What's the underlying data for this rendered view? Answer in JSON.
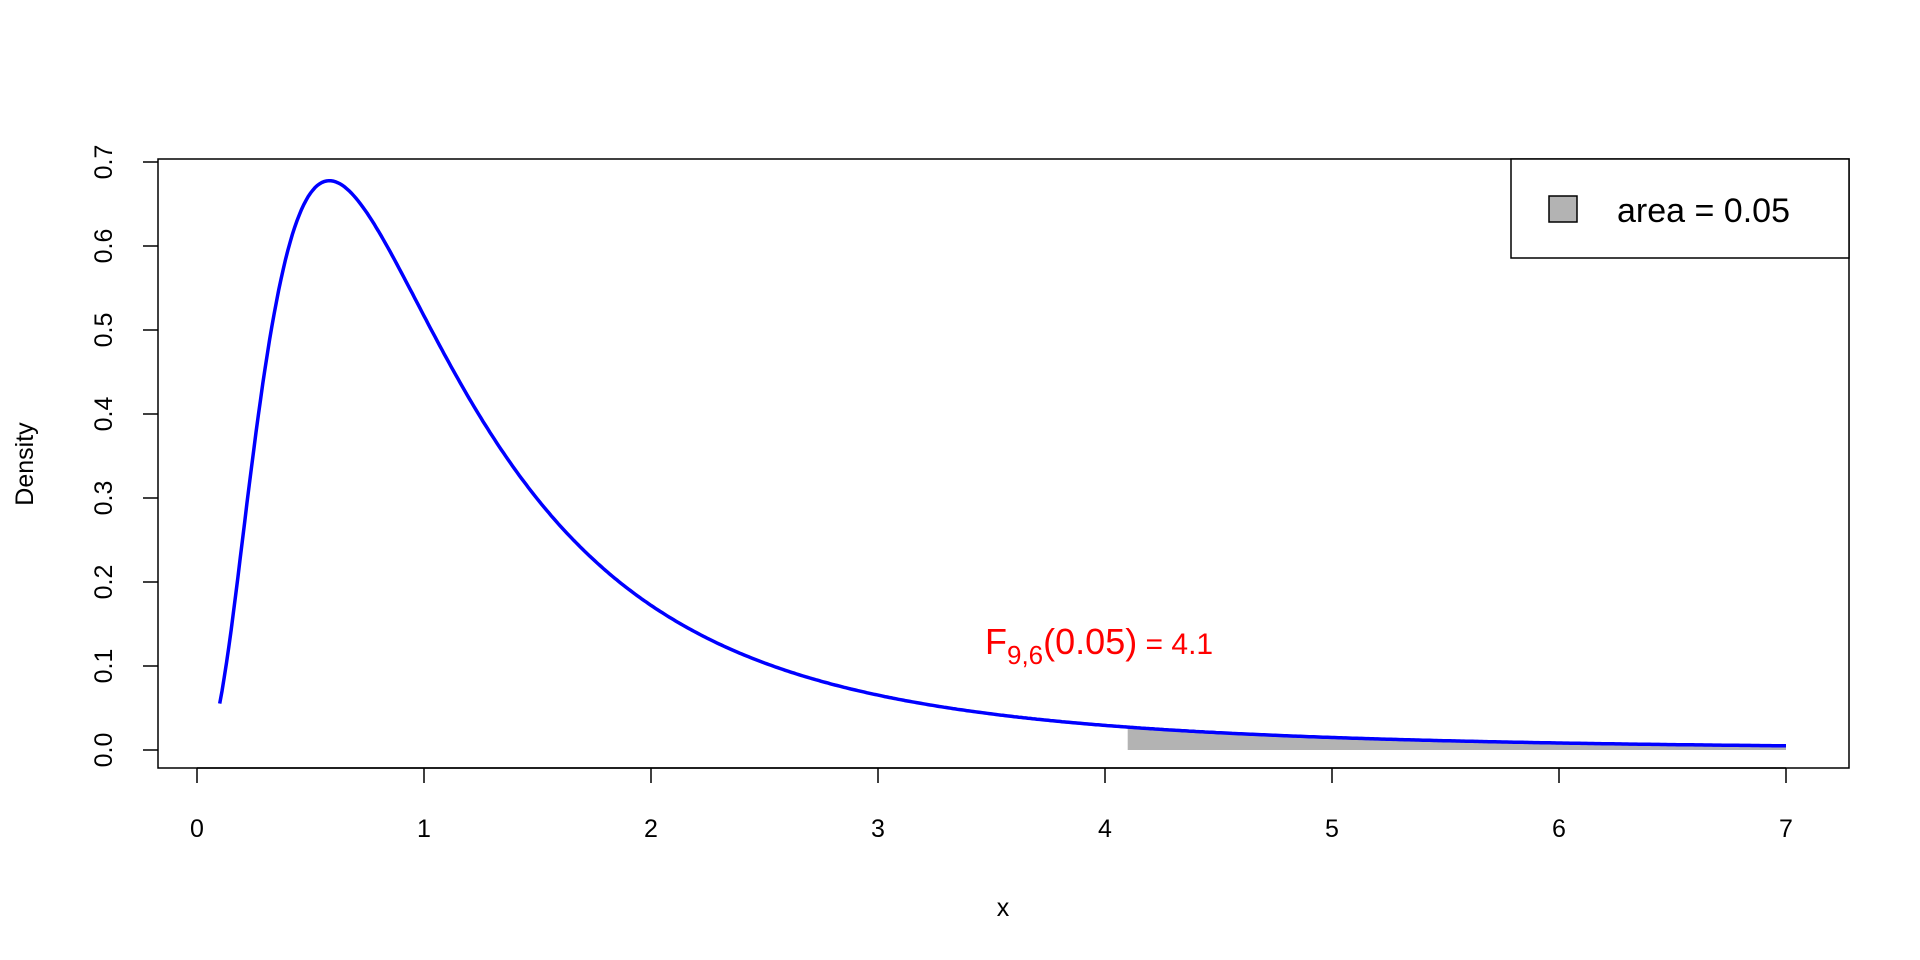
{
  "chart_data": {
    "type": "area",
    "title": "",
    "xlabel": "x",
    "ylabel": "Density",
    "xlim": [
      0,
      7
    ],
    "ylim": [
      0,
      0.7
    ],
    "x_ticks": [
      "0",
      "1",
      "2",
      "3",
      "4",
      "5",
      "6",
      "7"
    ],
    "y_ticks": [
      "0.0",
      "0.1",
      "0.2",
      "0.3",
      "0.4",
      "0.5",
      "0.6",
      "0.7"
    ],
    "grid": false,
    "series": [
      {
        "distribution": "F",
        "df1": 9,
        "df2": 6,
        "x_range": [
          0.1,
          7
        ],
        "color": "#0000FF"
      }
    ],
    "shaded_region": {
      "x_range": [
        4.1,
        7
      ],
      "color": "#B3B3B3"
    },
    "annotation": {
      "prefix": "F",
      "subscript": "9,6",
      "body": "(0.05)",
      "suffix": " = 4.1",
      "x": 4.1,
      "y": 0.12,
      "color": "#FF0000"
    },
    "legend": {
      "position": "top-right",
      "entries": [
        {
          "label": "area = 0.05",
          "fill": "#B3B3B3"
        }
      ]
    }
  }
}
